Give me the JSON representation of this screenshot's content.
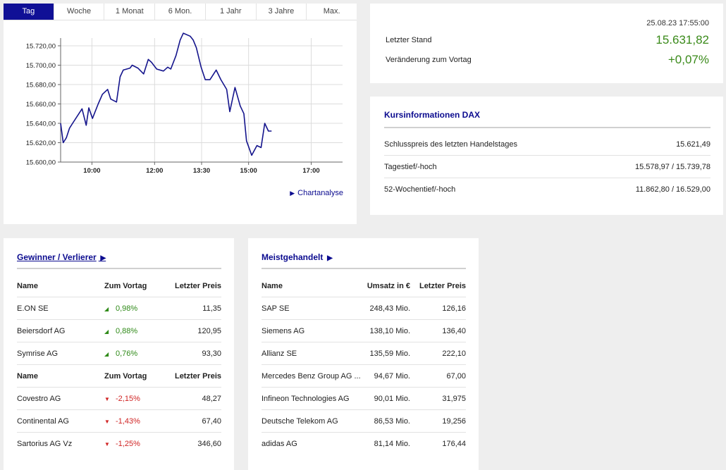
{
  "tabs": [
    "Tag",
    "Woche",
    "1 Monat",
    "6 Mon.",
    "1 Jahr",
    "3 Jahre",
    "Max."
  ],
  "chart_link": "Chartanalyse",
  "chart_data": {
    "type": "line",
    "title": "",
    "xlabel": "",
    "ylabel": "",
    "x_tick_labels": [
      "10:00",
      "12:00",
      "13:30",
      "15:00",
      "17:00"
    ],
    "x_tick_minutes": [
      600,
      720,
      810,
      900,
      1020
    ],
    "xlim_minutes": [
      540,
      1080
    ],
    "y_tick_labels": [
      "15.600,00",
      "15.620,00",
      "15.640,00",
      "15.660,00",
      "15.680,00",
      "15.700,00",
      "15.720,00"
    ],
    "ylim": [
      15600,
      15728
    ],
    "grid": true,
    "color": "#14148c",
    "series": [
      {
        "x": [
          540,
          545,
          551,
          557,
          563,
          575,
          581,
          589,
          594,
          601,
          612,
          620,
          630,
          636,
          647,
          654,
          660,
          673,
          677,
          688,
          699,
          708,
          714,
          724,
          737,
          745,
          751,
          761,
          769,
          775,
          788,
          794,
          800,
          809,
          817,
          826,
          838,
          847,
          858,
          864,
          874,
          884,
          891,
          896,
          906,
          916,
          924,
          931,
          938,
          944
        ],
        "y": [
          15640,
          15620,
          15625,
          15635,
          15640,
          15650,
          15655,
          15638,
          15656,
          15645,
          15660,
          15670,
          15675,
          15665,
          15662,
          15688,
          15695,
          15697,
          15700,
          15697,
          15691,
          15706,
          15703,
          15696,
          15694,
          15698,
          15696,
          15710,
          15726,
          15733,
          15730,
          15726,
          15718,
          15698,
          15685,
          15685,
          15695,
          15685,
          15675,
          15652,
          15677,
          15658,
          15650,
          15622,
          15607,
          15617,
          15615,
          15640,
          15632,
          15632
        ]
      }
    ]
  },
  "quote": {
    "timestamp": "25.08.23 17:55:00",
    "last_label": "Letzter Stand",
    "last_value": "15.631,82",
    "change_label": "Veränderung zum Vortag",
    "change_value": "+0,07%"
  },
  "info": {
    "title": "Kursinformationen DAX",
    "rows": [
      {
        "label": "Schlusspreis des letzten Handelstages",
        "value": "15.621,49"
      },
      {
        "label": "Tagestief/-hoch",
        "value": "15.578,97 / 15.739,78"
      },
      {
        "label": "52-Wochentief/-hoch",
        "value": "11.862,80 / 16.529,00"
      }
    ]
  },
  "movers": {
    "title": "Gewinner / Verlierer",
    "header": {
      "name": "Name",
      "change": "Zum Vortag",
      "price": "Letzter Preis"
    },
    "gainers": [
      {
        "name": "E.ON SE",
        "change": "0,98%",
        "price": "11,35"
      },
      {
        "name": "Beiersdorf AG",
        "change": "0,88%",
        "price": "120,95"
      },
      {
        "name": "Symrise AG",
        "change": "0,76%",
        "price": "93,30"
      }
    ],
    "losers": [
      {
        "name": "Covestro AG",
        "change": "-2,15%",
        "price": "48,27"
      },
      {
        "name": "Continental AG",
        "change": "-1,43%",
        "price": "67,40"
      },
      {
        "name": "Sartorius AG Vz",
        "change": "-1,25%",
        "price": "346,60"
      }
    ]
  },
  "traded": {
    "title": "Meistgehandelt",
    "header": {
      "name": "Name",
      "volume": "Umsatz in €",
      "price": "Letzter Preis"
    },
    "rows": [
      {
        "name": "SAP SE",
        "volume": "248,43 Mio.",
        "price": "126,16"
      },
      {
        "name": "Siemens AG",
        "volume": "138,10 Mio.",
        "price": "136,40"
      },
      {
        "name": "Allianz SE",
        "volume": "135,59 Mio.",
        "price": "222,10"
      },
      {
        "name": "Mercedes Benz Group AG ...",
        "volume": "94,67 Mio.",
        "price": "67,00"
      },
      {
        "name": "Infineon Technologies AG",
        "volume": "90,01 Mio.",
        "price": "31,975"
      },
      {
        "name": "Deutsche Telekom AG",
        "volume": "86,53 Mio.",
        "price": "19,256"
      },
      {
        "name": "adidas AG",
        "volume": "81,14 Mio.",
        "price": "176,44"
      }
    ]
  }
}
